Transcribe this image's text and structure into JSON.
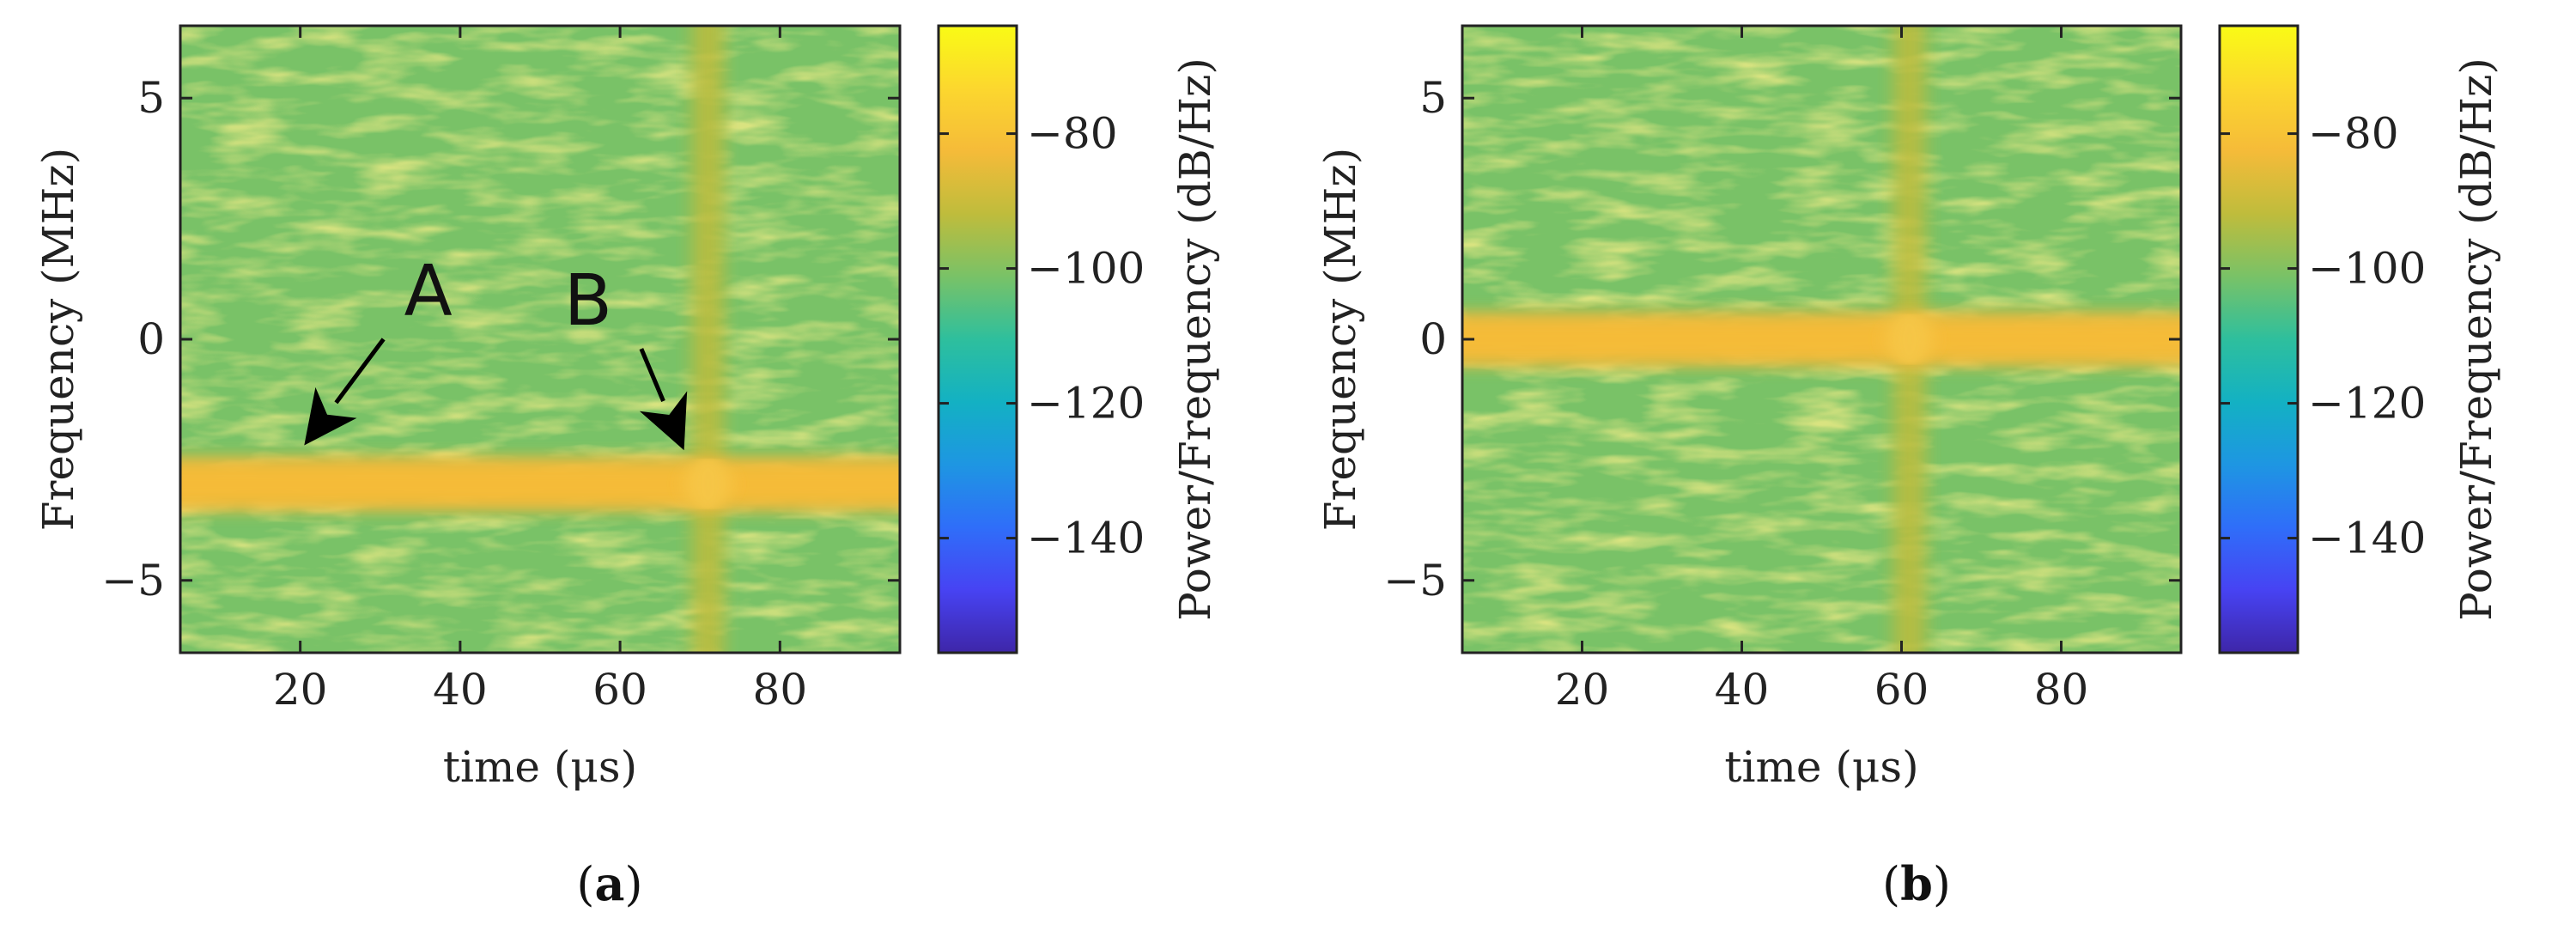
{
  "chart_data": [
    {
      "type": "heatmap",
      "panel": "(a)",
      "panel_letter": "a",
      "title": "",
      "xlabel": "time (μs)",
      "ylabel": "Frequency (MHz)",
      "xlim": [
        5,
        95
      ],
      "ylim": [
        -6.5,
        6.5
      ],
      "xticks": [
        20,
        40,
        60,
        80
      ],
      "yticks": [
        5,
        0,
        -5
      ],
      "xtick_labels": [
        "20",
        "40",
        "60",
        "80"
      ],
      "ytick_labels": [
        "5",
        "0",
        "−5"
      ],
      "colorbar": {
        "label": "Power/Frequency (dB/Hz)",
        "range": [
          -157,
          -64
        ],
        "ticks": [
          -80,
          -100,
          -120,
          -140
        ],
        "tick_labels": [
          "−80",
          "−100",
          "−120",
          "−140"
        ],
        "colormap": [
          "#3e26a8",
          "#4743f3",
          "#2f6ef9",
          "#1e96e2",
          "#13b1c3",
          "#2ebf9d",
          "#79c267",
          "#bfbc3c",
          "#f5bb39",
          "#fcd72e",
          "#f9fb15"
        ]
      },
      "background_level_db": -105,
      "features": [
        {
          "kind": "horizontal_band",
          "freq_center_mhz": -3.0,
          "width_mhz": 0.9,
          "t_start_us": 5,
          "t_end_us": 95,
          "level_db": -80
        },
        {
          "kind": "vertical_burst",
          "time_us": 71,
          "width_us": 4,
          "f_start_mhz": -6.5,
          "f_end_mhz": 6.5,
          "level_db": -92
        }
      ],
      "annotations": [
        {
          "text": "A",
          "text_x_us": 36,
          "text_y_mhz": 0.5,
          "arrow_to_x_us": 20.5,
          "arrow_to_y_mhz": -2.2
        },
        {
          "text": "B",
          "text_x_us": 56,
          "text_y_mhz": 0.3,
          "arrow_to_x_us": 68,
          "arrow_to_y_mhz": -2.3
        }
      ]
    },
    {
      "type": "heatmap",
      "panel": "(b)",
      "panel_letter": "b",
      "title": "",
      "xlabel": "time (μs)",
      "ylabel": "Frequency (MHz)",
      "xlim": [
        5,
        95
      ],
      "ylim": [
        -6.5,
        6.5
      ],
      "xticks": [
        20,
        40,
        60,
        80
      ],
      "yticks": [
        5,
        0,
        -5
      ],
      "xtick_labels": [
        "20",
        "40",
        "60",
        "80"
      ],
      "ytick_labels": [
        "5",
        "0",
        "−5"
      ],
      "colorbar": {
        "label": "Power/Frequency (dB/Hz)",
        "range": [
          -157,
          -64
        ],
        "ticks": [
          -80,
          -100,
          -120,
          -140
        ],
        "tick_labels": [
          "−80",
          "−100",
          "−120",
          "−140"
        ],
        "colormap": [
          "#3e26a8",
          "#4743f3",
          "#2f6ef9",
          "#1e96e2",
          "#13b1c3",
          "#2ebf9d",
          "#79c267",
          "#bfbc3c",
          "#f5bb39",
          "#fcd72e",
          "#f9fb15"
        ]
      },
      "background_level_db": -105,
      "features": [
        {
          "kind": "horizontal_band",
          "freq_center_mhz": 0.0,
          "width_mhz": 0.9,
          "t_start_us": 5,
          "t_end_us": 95,
          "level_db": -80
        },
        {
          "kind": "vertical_burst",
          "time_us": 61,
          "width_us": 4,
          "f_start_mhz": -6.5,
          "f_end_mhz": 6.5,
          "level_db": -92
        }
      ],
      "annotations": []
    }
  ]
}
